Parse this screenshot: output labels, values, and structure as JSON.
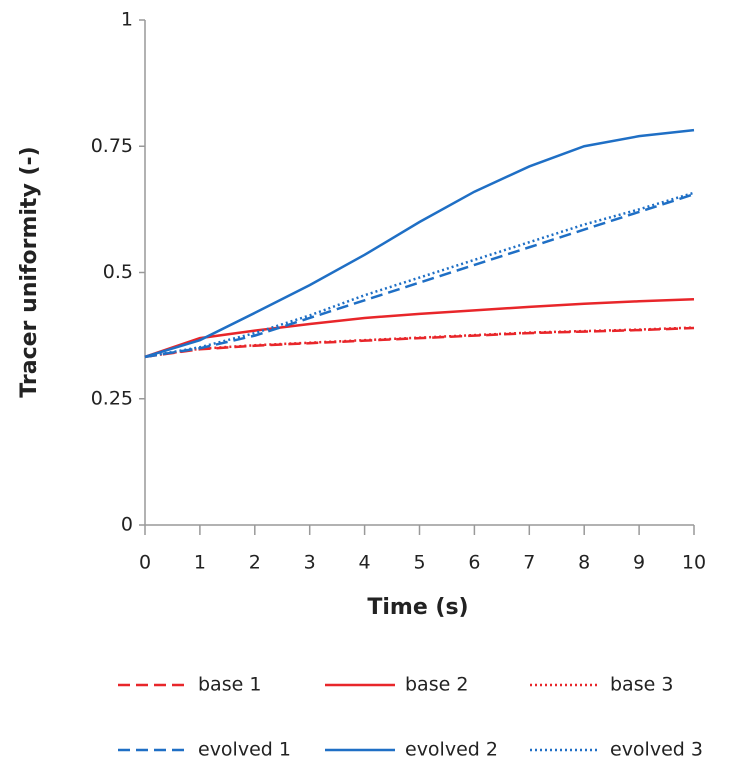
{
  "chart_data": {
    "type": "line",
    "x_label": "Time (s)",
    "y_label": "Tracer uniformity (-)",
    "x": [
      0,
      1,
      2,
      3,
      4,
      5,
      6,
      7,
      8,
      9,
      10
    ],
    "series": [
      {
        "name": "base 1",
        "color": "#e8262a",
        "style": "dashed",
        "values": [
          0.333,
          0.348,
          0.355,
          0.36,
          0.365,
          0.37,
          0.375,
          0.38,
          0.383,
          0.386,
          0.39
        ]
      },
      {
        "name": "base 2",
        "color": "#e8262a",
        "style": "solid",
        "values": [
          0.333,
          0.37,
          0.385,
          0.398,
          0.41,
          0.418,
          0.425,
          0.432,
          0.438,
          0.443,
          0.447
        ]
      },
      {
        "name": "base 3",
        "color": "#e8262a",
        "style": "dotted",
        "values": [
          0.333,
          0.349,
          0.356,
          0.361,
          0.366,
          0.371,
          0.376,
          0.381,
          0.384,
          0.387,
          0.391
        ]
      },
      {
        "name": "evolved 1",
        "color": "#1f6fc5",
        "style": "dashed",
        "values": [
          0.333,
          0.35,
          0.375,
          0.41,
          0.445,
          0.48,
          0.515,
          0.55,
          0.585,
          0.62,
          0.655
        ]
      },
      {
        "name": "evolved 2",
        "color": "#1f6fc5",
        "style": "solid",
        "values": [
          0.333,
          0.366,
          0.42,
          0.475,
          0.535,
          0.6,
          0.66,
          0.71,
          0.75,
          0.77,
          0.782
        ]
      },
      {
        "name": "evolved 3",
        "color": "#1f6fc5",
        "style": "dotted",
        "values": [
          0.333,
          0.352,
          0.38,
          0.415,
          0.455,
          0.49,
          0.525,
          0.56,
          0.595,
          0.625,
          0.658
        ]
      }
    ],
    "xlim": [
      0,
      10
    ],
    "xticks": [
      0,
      1,
      2,
      3,
      4,
      5,
      6,
      7,
      8,
      9,
      10
    ],
    "ylim": [
      0,
      1
    ],
    "yticks": [
      0,
      0.25,
      0.5,
      0.75,
      1
    ],
    "grid": false
  }
}
